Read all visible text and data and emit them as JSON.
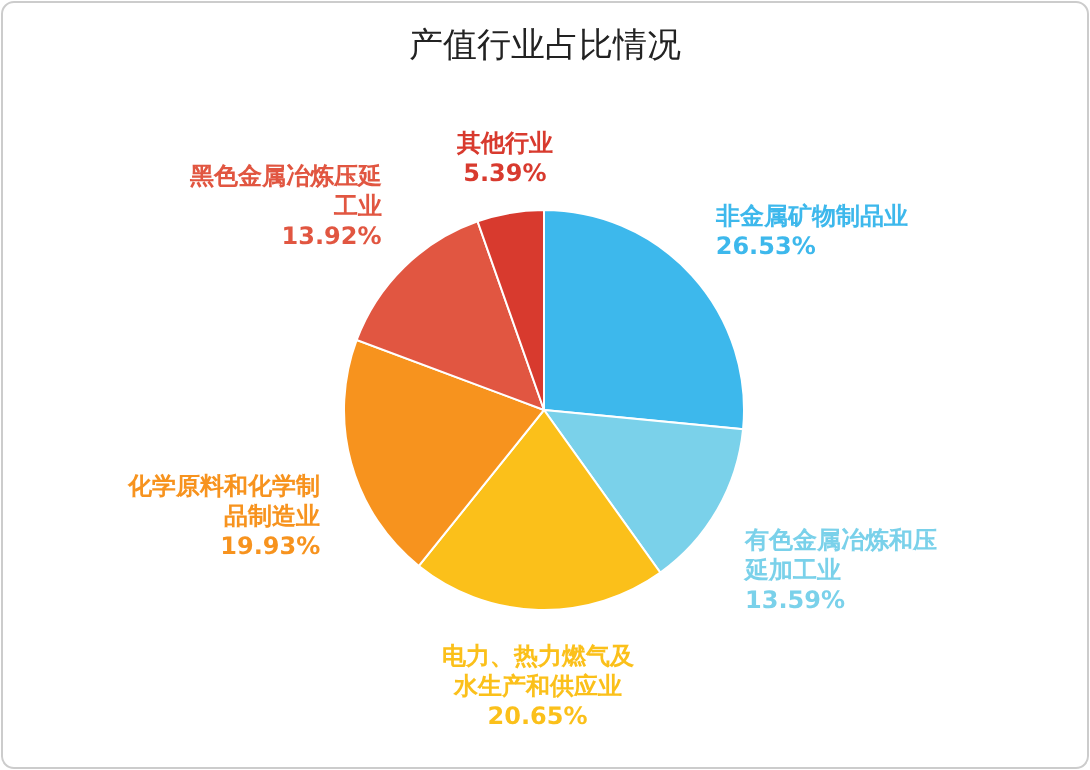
{
  "chart_data": {
    "type": "pie",
    "title": "产值行业占比情况",
    "categories": [
      "非金属矿物制品业",
      "有色金属冶炼和压延加工业",
      "电力、热力燃气及水生产和供应业",
      "化学原料和化学制品制造业",
      "黑色金属冶炼压延工业",
      "其他行业"
    ],
    "values": [
      26.53,
      13.59,
      20.65,
      19.93,
      13.92,
      5.39
    ],
    "colors": [
      "#3db8ec",
      "#7ad1ea",
      "#fbc01a",
      "#f7931e",
      "#e15641",
      "#d83a2e"
    ],
    "value_labels": [
      "26.53%",
      "13.59%",
      "20.65%",
      "19.93%",
      "13.92%",
      "5.39%"
    ]
  }
}
